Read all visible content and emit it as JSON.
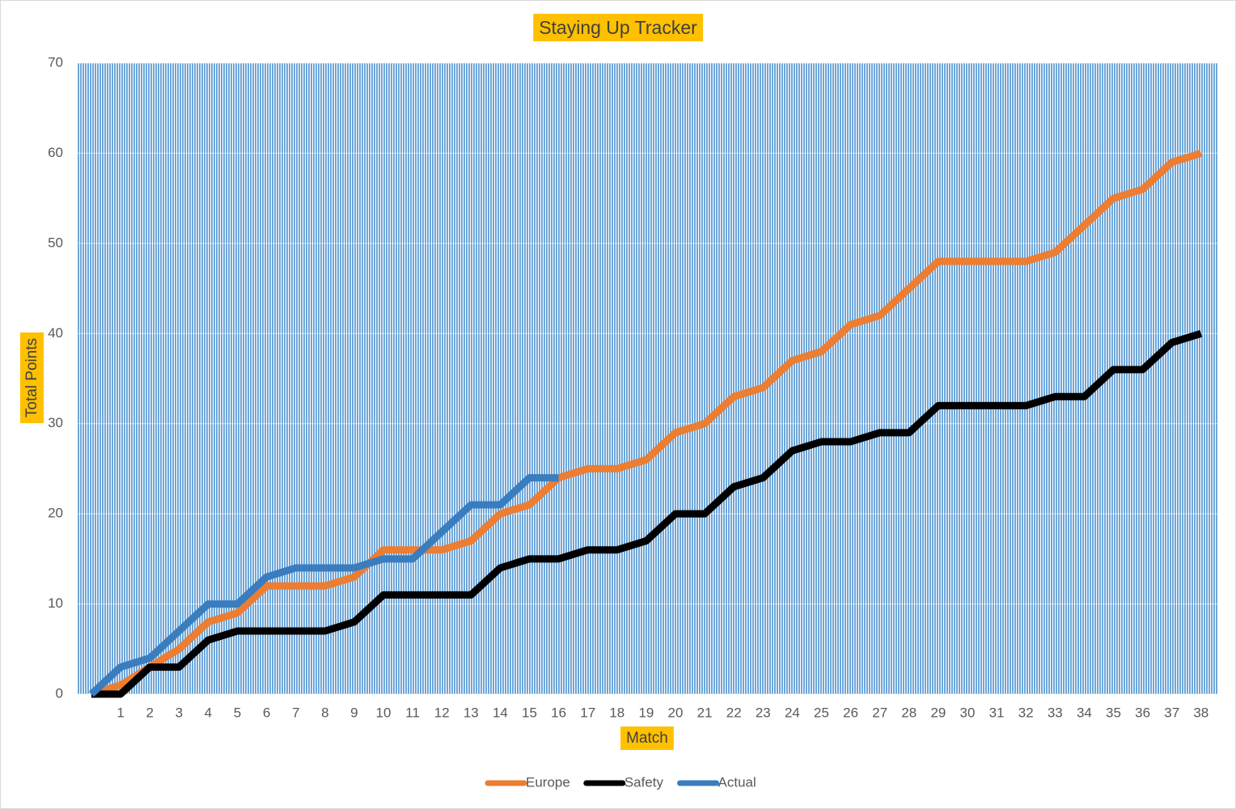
{
  "chart_data": {
    "type": "line",
    "title": "Staying Up Tracker",
    "x_label": "Match",
    "y_label": "Total Points",
    "categories": [
      null,
      1,
      2,
      3,
      4,
      5,
      6,
      7,
      8,
      9,
      10,
      11,
      12,
      13,
      14,
      15,
      16,
      17,
      18,
      19,
      20,
      21,
      22,
      23,
      24,
      25,
      26,
      27,
      28,
      29,
      30,
      31,
      32,
      33,
      34,
      35,
      36,
      37,
      38
    ],
    "series": [
      {
        "name": "Europe",
        "color": "#ed7d31",
        "values": [
          0,
          1,
          3,
          5,
          8,
          9,
          12,
          12,
          12,
          13,
          16,
          16,
          16,
          17,
          20,
          21,
          24,
          25,
          25,
          26,
          29,
          30,
          33,
          34,
          37,
          38,
          41,
          42,
          45,
          48,
          48,
          48,
          48,
          49,
          52,
          55,
          56,
          59,
          60
        ]
      },
      {
        "name": "Safety",
        "color": "#000000",
        "values": [
          0,
          0,
          3,
          3,
          6,
          7,
          7,
          7,
          7,
          8,
          11,
          11,
          11,
          11,
          14,
          15,
          15,
          16,
          16,
          17,
          20,
          20,
          23,
          24,
          27,
          28,
          28,
          29,
          29,
          32,
          32,
          32,
          32,
          33,
          33,
          36,
          36,
          39,
          40
        ]
      },
      {
        "name": "Actual",
        "color": "#3a7dbf",
        "values": [
          0,
          3,
          4,
          7,
          10,
          10,
          13,
          14,
          14,
          14,
          15,
          15,
          18,
          21,
          21,
          24,
          24,
          null,
          null,
          null,
          null,
          null,
          null,
          null,
          null,
          null,
          null,
          null,
          null,
          null,
          null,
          null,
          null,
          null,
          null,
          null,
          null,
          null,
          null
        ]
      }
    ],
    "ylim": [
      0,
      70
    ],
    "yticks": [
      0,
      10,
      20,
      30,
      40,
      50,
      60,
      70
    ],
    "grid": true,
    "legend": "bottom"
  }
}
